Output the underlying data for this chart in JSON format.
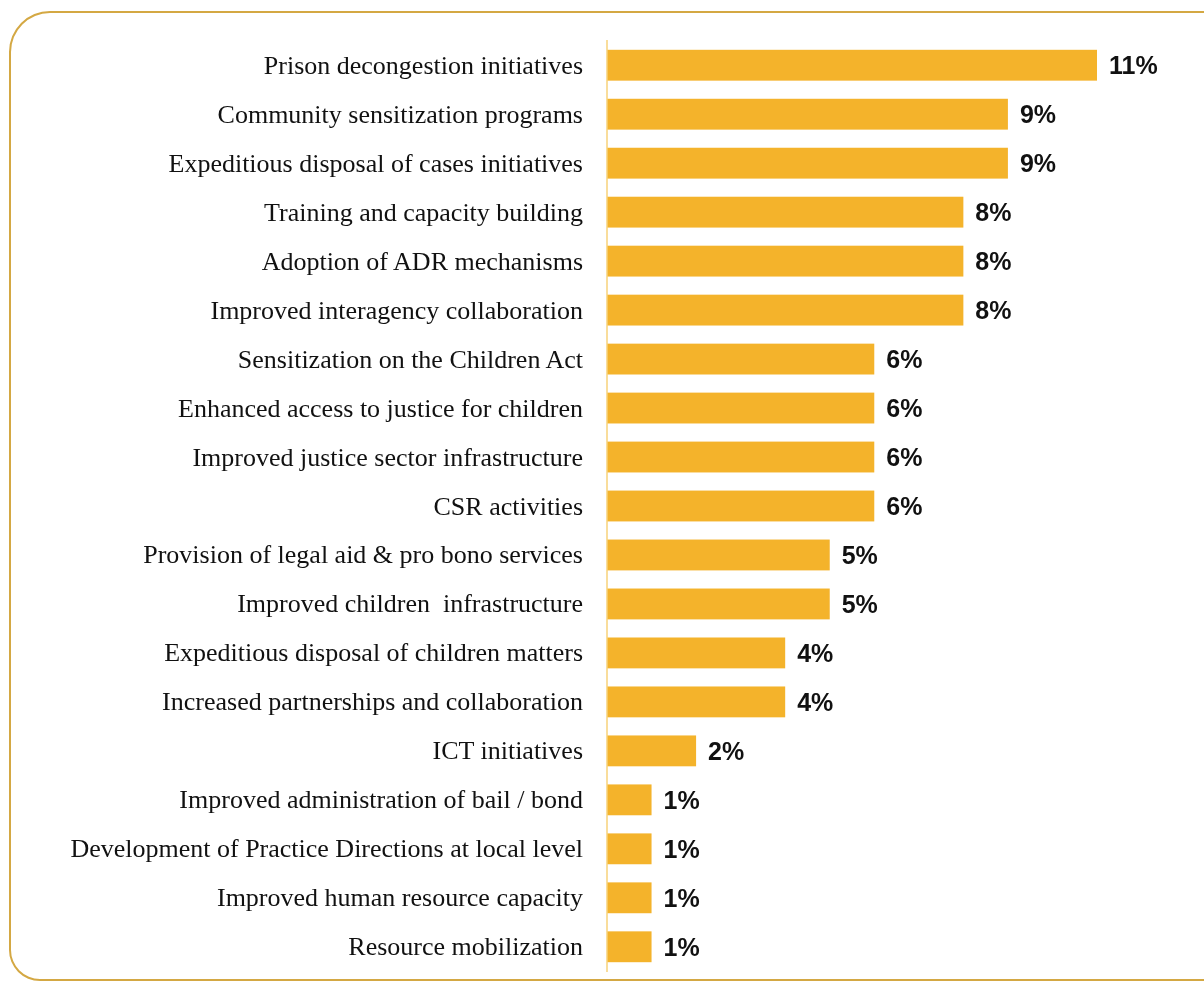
{
  "chart_data": {
    "type": "bar",
    "orientation": "horizontal",
    "categories": [
      "Prison decongestion initiatives",
      "Community sensitization programs",
      "Expeditious disposal of cases initiatives",
      "Training and capacity building",
      "Adoption of ADR mechanisms",
      "Improved interagency collaboration",
      "Sensitization on the Children Act",
      "Enhanced access to justice for children",
      "Improved justice sector infrastructure",
      "CSR activities",
      "Provision of legal aid & pro bono services",
      "Improved children  infrastructure",
      "Expeditious disposal of children matters",
      "Increased partnerships and collaboration",
      "ICT initiatives",
      "Improved administration of bail / bond",
      "Development of Practice Directions at local level",
      "Improved human resource capacity",
      "Resource mobilization"
    ],
    "values": [
      11,
      9,
      9,
      8,
      8,
      8,
      6,
      6,
      6,
      6,
      5,
      5,
      4,
      4,
      2,
      1,
      1,
      1,
      1
    ],
    "value_labels": [
      "11%",
      "9%",
      "9%",
      "8%",
      "8%",
      "8%",
      "6%",
      "6%",
      "6%",
      "6%",
      "5%",
      "5%",
      "4%",
      "4%",
      "2%",
      "1%",
      "1%",
      "1%",
      "1%"
    ],
    "color": "#f4b32b"
  }
}
